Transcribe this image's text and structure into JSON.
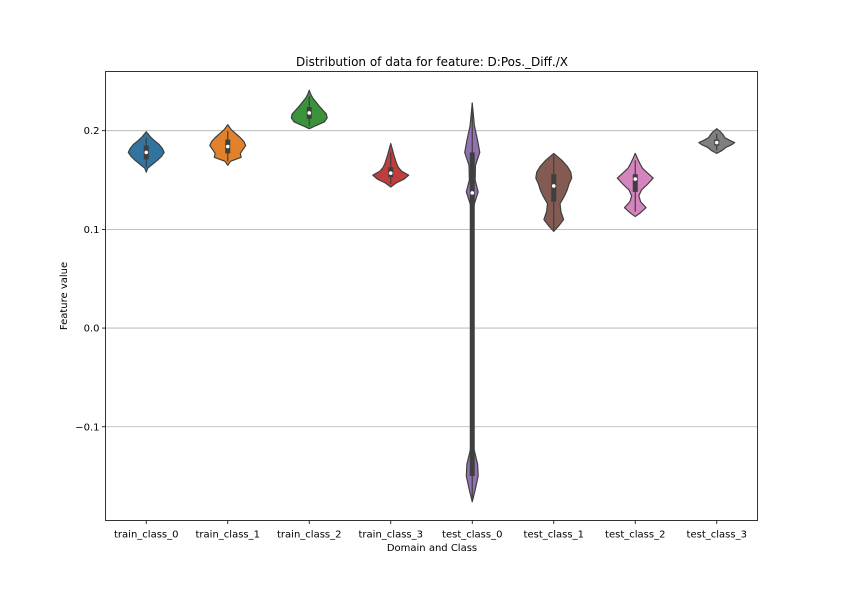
{
  "chart_data": {
    "type": "violin",
    "title": "Distribution of data for feature: D:Pos._Diff./X",
    "xlabel": "Domain and Class",
    "ylabel": "Feature value",
    "ylim": [
      -0.195,
      0.26
    ],
    "yticks": [
      -0.1,
      0.0,
      0.1,
      0.2
    ],
    "ytick_labels": [
      "−0.1",
      "0.0",
      "0.1",
      "0.2"
    ],
    "grid": "horizontal",
    "categories": [
      "train_class_0",
      "train_class_1",
      "train_class_2",
      "train_class_3",
      "test_class_0",
      "test_class_1",
      "test_class_2",
      "test_class_3"
    ],
    "series": [
      {
        "color": "#3274a1",
        "min": 0.158,
        "max": 0.199,
        "q1": 0.171,
        "median": 0.178,
        "q3": 0.185,
        "whisker_low": 0.163,
        "whisker_high": 0.193,
        "profile": [
          [
            0.158,
            0
          ],
          [
            0.162,
            0.08
          ],
          [
            0.166,
            0.35
          ],
          [
            0.17,
            0.62
          ],
          [
            0.174,
            0.85
          ],
          [
            0.178,
            1.0
          ],
          [
            0.182,
            0.9
          ],
          [
            0.186,
            0.72
          ],
          [
            0.19,
            0.45
          ],
          [
            0.194,
            0.22
          ],
          [
            0.199,
            0
          ]
        ]
      },
      {
        "color": "#e1812c",
        "min": 0.165,
        "max": 0.206,
        "q1": 0.177,
        "median": 0.184,
        "q3": 0.191,
        "whisker_low": 0.169,
        "whisker_high": 0.2,
        "profile": [
          [
            0.165,
            0
          ],
          [
            0.169,
            0.15
          ],
          [
            0.173,
            0.75
          ],
          [
            0.177,
            0.7
          ],
          [
            0.181,
            0.85
          ],
          [
            0.185,
            1.0
          ],
          [
            0.189,
            0.9
          ],
          [
            0.193,
            0.7
          ],
          [
            0.197,
            0.45
          ],
          [
            0.201,
            0.2
          ],
          [
            0.206,
            0
          ]
        ]
      },
      {
        "color": "#3a923a",
        "min": 0.202,
        "max": 0.241,
        "q1": 0.212,
        "median": 0.218,
        "q3": 0.224,
        "whisker_low": 0.205,
        "whisker_high": 0.235,
        "profile": [
          [
            0.202,
            0
          ],
          [
            0.205,
            0.35
          ],
          [
            0.209,
            0.85
          ],
          [
            0.213,
            1.0
          ],
          [
            0.217,
            0.95
          ],
          [
            0.221,
            0.75
          ],
          [
            0.225,
            0.55
          ],
          [
            0.229,
            0.38
          ],
          [
            0.233,
            0.2
          ],
          [
            0.237,
            0.08
          ],
          [
            0.241,
            0
          ]
        ]
      },
      {
        "color": "#c03d3e",
        "min": 0.143,
        "max": 0.187,
        "q1": 0.153,
        "median": 0.157,
        "q3": 0.163,
        "whisker_low": 0.146,
        "whisker_high": 0.178,
        "profile": [
          [
            0.143,
            0
          ],
          [
            0.147,
            0.3
          ],
          [
            0.151,
            0.75
          ],
          [
            0.155,
            1.0
          ],
          [
            0.159,
            0.6
          ],
          [
            0.163,
            0.42
          ],
          [
            0.167,
            0.32
          ],
          [
            0.171,
            0.25
          ],
          [
            0.175,
            0.18
          ],
          [
            0.179,
            0.12
          ],
          [
            0.183,
            0.06
          ],
          [
            0.187,
            0
          ]
        ]
      },
      {
        "color": "#9372b2",
        "min": -0.176,
        "max": 0.228,
        "q1": -0.15,
        "median": 0.137,
        "q3": 0.178,
        "whisker_low": -0.176,
        "whisker_high": 0.228,
        "profile": [
          [
            -0.176,
            0
          ],
          [
            -0.165,
            0.15
          ],
          [
            -0.15,
            0.33
          ],
          [
            -0.138,
            0.3
          ],
          [
            -0.12,
            0.06
          ],
          [
            0.0,
            0.06
          ],
          [
            0.1,
            0.07
          ],
          [
            0.125,
            0.1
          ],
          [
            0.138,
            0.33
          ],
          [
            0.15,
            0.16
          ],
          [
            0.165,
            0.18
          ],
          [
            0.178,
            0.42
          ],
          [
            0.19,
            0.3
          ],
          [
            0.205,
            0.12
          ],
          [
            0.228,
            0
          ]
        ]
      },
      {
        "color": "#845b53",
        "min": 0.098,
        "max": 0.177,
        "q1": 0.128,
        "median": 0.144,
        "q3": 0.156,
        "whisker_low": 0.1,
        "whisker_high": 0.175,
        "profile": [
          [
            0.098,
            0
          ],
          [
            0.104,
            0.3
          ],
          [
            0.11,
            0.55
          ],
          [
            0.118,
            0.4
          ],
          [
            0.126,
            0.35
          ],
          [
            0.134,
            0.6
          ],
          [
            0.14,
            0.75
          ],
          [
            0.146,
            0.85
          ],
          [
            0.152,
            1.0
          ],
          [
            0.158,
            0.95
          ],
          [
            0.164,
            0.75
          ],
          [
            0.17,
            0.45
          ],
          [
            0.177,
            0
          ]
        ]
      },
      {
        "color": "#d684bd",
        "min": 0.113,
        "max": 0.177,
        "q1": 0.138,
        "median": 0.151,
        "q3": 0.156,
        "whisker_low": 0.118,
        "whisker_high": 0.17,
        "profile": [
          [
            0.113,
            0
          ],
          [
            0.117,
            0.3
          ],
          [
            0.122,
            0.6
          ],
          [
            0.128,
            0.3
          ],
          [
            0.134,
            0.2
          ],
          [
            0.14,
            0.35
          ],
          [
            0.146,
            0.7
          ],
          [
            0.152,
            1.0
          ],
          [
            0.157,
            0.7
          ],
          [
            0.162,
            0.4
          ],
          [
            0.167,
            0.25
          ],
          [
            0.172,
            0.12
          ],
          [
            0.177,
            0
          ]
        ]
      },
      {
        "color": "#7f7f7f",
        "min": 0.177,
        "max": 0.202,
        "q1": 0.185,
        "median": 0.188,
        "q3": 0.191,
        "whisker_low": 0.18,
        "whisker_high": 0.197,
        "profile": [
          [
            0.177,
            0
          ],
          [
            0.18,
            0.3
          ],
          [
            0.183,
            0.5
          ],
          [
            0.186,
            0.85
          ],
          [
            0.188,
            1.0
          ],
          [
            0.19,
            0.75
          ],
          [
            0.193,
            0.45
          ],
          [
            0.196,
            0.35
          ],
          [
            0.199,
            0.2
          ],
          [
            0.202,
            0
          ]
        ]
      }
    ]
  }
}
